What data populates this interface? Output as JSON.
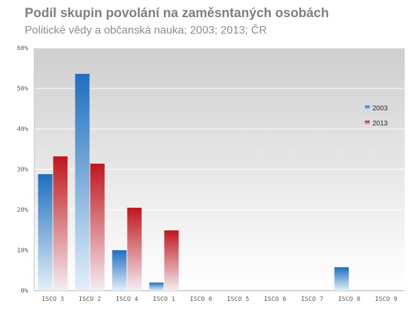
{
  "chart_data": {
    "type": "bar",
    "title": "Podíl skupin povolání na zaměsntaných osobách",
    "subtitle": "Politické vědy a občanská nauka; 2003; 2013; ČR",
    "categories": [
      "ISCO 3",
      "ISCO 2",
      "ISCO 4",
      "ISCO 1",
      "ISCO 0",
      "ISCO 5",
      "ISCO 6",
      "ISCO 7",
      "ISCO 8",
      "ISCO 9"
    ],
    "series": [
      {
        "name": "2003",
        "color": "#1f6fc0",
        "values": [
          28.8,
          53.6,
          10.0,
          2.0,
          0,
          0,
          0,
          0,
          5.8,
          0
        ]
      },
      {
        "name": "2013",
        "color": "#c0161c",
        "values": [
          33.2,
          31.4,
          20.5,
          14.9,
          0,
          0,
          0,
          0,
          0,
          0
        ]
      }
    ],
    "ylim": [
      0,
      60
    ],
    "yticks": [
      "0%",
      "10%",
      "20%",
      "30%",
      "40%",
      "50%",
      "60%"
    ],
    "grid": true,
    "legend": "right"
  }
}
